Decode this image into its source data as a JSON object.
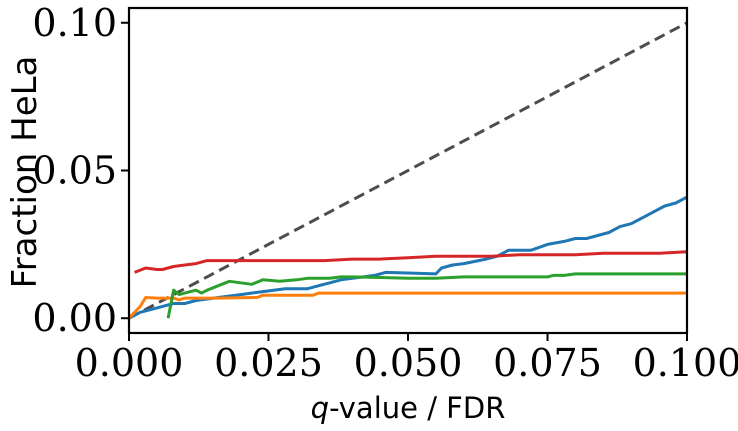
{
  "chart_data": {
    "type": "line",
    "xlabel_italic": "q",
    "xlabel_rest": "-value / FDR",
    "ylabel": "Fraction HeLa",
    "xlim": [
      0.0,
      0.1
    ],
    "ylim": [
      -0.005,
      0.105
    ],
    "xticks": [
      0.0,
      0.025,
      0.05,
      0.075,
      0.1
    ],
    "xtick_labels": [
      "0.000",
      "0.025",
      "0.050",
      "0.075",
      "0.100"
    ],
    "yticks": [
      0.0,
      0.05,
      0.1
    ],
    "ytick_labels": [
      "0.00",
      "0.05",
      "0.10"
    ],
    "grid": false,
    "reference_line": {
      "style": "dashed",
      "color": "#4d4d4d",
      "x": [
        0.0,
        0.1
      ],
      "y": [
        0.0,
        0.1
      ]
    },
    "series": [
      {
        "color": "#1f77b4",
        "x": [
          0.0,
          0.002,
          0.004,
          0.006,
          0.008,
          0.01,
          0.012,
          0.016,
          0.02,
          0.024,
          0.028,
          0.032,
          0.034,
          0.036,
          0.038,
          0.04,
          0.042,
          0.044,
          0.046,
          0.05,
          0.055,
          0.056,
          0.058,
          0.06,
          0.064,
          0.066,
          0.068,
          0.07,
          0.072,
          0.075,
          0.078,
          0.08,
          0.082,
          0.084,
          0.086,
          0.088,
          0.09,
          0.092,
          0.094,
          0.096,
          0.098,
          0.1
        ],
        "y": [
          0.0,
          0.002,
          0.003,
          0.004,
          0.005,
          0.005,
          0.006,
          0.007,
          0.008,
          0.009,
          0.01,
          0.01,
          0.011,
          0.012,
          0.013,
          0.0135,
          0.014,
          0.0145,
          0.0155,
          0.0153,
          0.015,
          0.017,
          0.018,
          0.0185,
          0.02,
          0.021,
          0.023,
          0.023,
          0.023,
          0.025,
          0.026,
          0.027,
          0.027,
          0.028,
          0.029,
          0.031,
          0.032,
          0.034,
          0.036,
          0.038,
          0.039,
          0.041
        ]
      },
      {
        "color": "#ff7f0e",
        "x": [
          0.0,
          0.002,
          0.003,
          0.005,
          0.008,
          0.009,
          0.01,
          0.012,
          0.016,
          0.02,
          0.023,
          0.024,
          0.03,
          0.033,
          0.034,
          0.04,
          0.05,
          0.06,
          0.07,
          0.08,
          0.09,
          0.1
        ],
        "y": [
          0.0,
          0.004,
          0.007,
          0.0068,
          0.0068,
          0.0062,
          0.0068,
          0.0068,
          0.0068,
          0.0069,
          0.007,
          0.0078,
          0.0078,
          0.0078,
          0.0085,
          0.0085,
          0.0085,
          0.0085,
          0.0085,
          0.0085,
          0.0085,
          0.0085
        ]
      },
      {
        "color": "#2ca02c",
        "x": [
          0.007,
          0.008,
          0.009,
          0.01,
          0.011,
          0.012,
          0.013,
          0.014,
          0.016,
          0.018,
          0.02,
          0.022,
          0.024,
          0.027,
          0.03,
          0.032,
          0.034,
          0.036,
          0.038,
          0.04,
          0.045,
          0.05,
          0.055,
          0.06,
          0.065,
          0.07,
          0.075,
          0.076,
          0.078,
          0.08,
          0.085,
          0.09,
          0.1
        ],
        "y": [
          0.0,
          0.0095,
          0.008,
          0.0085,
          0.009,
          0.0095,
          0.0085,
          0.0095,
          0.011,
          0.0125,
          0.012,
          0.0115,
          0.013,
          0.0125,
          0.013,
          0.0135,
          0.0135,
          0.0135,
          0.014,
          0.014,
          0.0138,
          0.0135,
          0.0135,
          0.014,
          0.014,
          0.014,
          0.014,
          0.0145,
          0.0145,
          0.015,
          0.015,
          0.015,
          0.015
        ]
      },
      {
        "color": "#d62728",
        "x": [
          0.001,
          0.003,
          0.005,
          0.006,
          0.008,
          0.01,
          0.012,
          0.014,
          0.018,
          0.022,
          0.026,
          0.03,
          0.035,
          0.04,
          0.045,
          0.05,
          0.055,
          0.06,
          0.065,
          0.07,
          0.075,
          0.08,
          0.085,
          0.09,
          0.095,
          0.1
        ],
        "y": [
          0.0155,
          0.017,
          0.0165,
          0.0165,
          0.0175,
          0.018,
          0.0185,
          0.0195,
          0.0195,
          0.0195,
          0.0195,
          0.0195,
          0.0195,
          0.02,
          0.02,
          0.0205,
          0.021,
          0.021,
          0.021,
          0.0215,
          0.0215,
          0.0215,
          0.022,
          0.022,
          0.022,
          0.0225
        ]
      }
    ]
  }
}
